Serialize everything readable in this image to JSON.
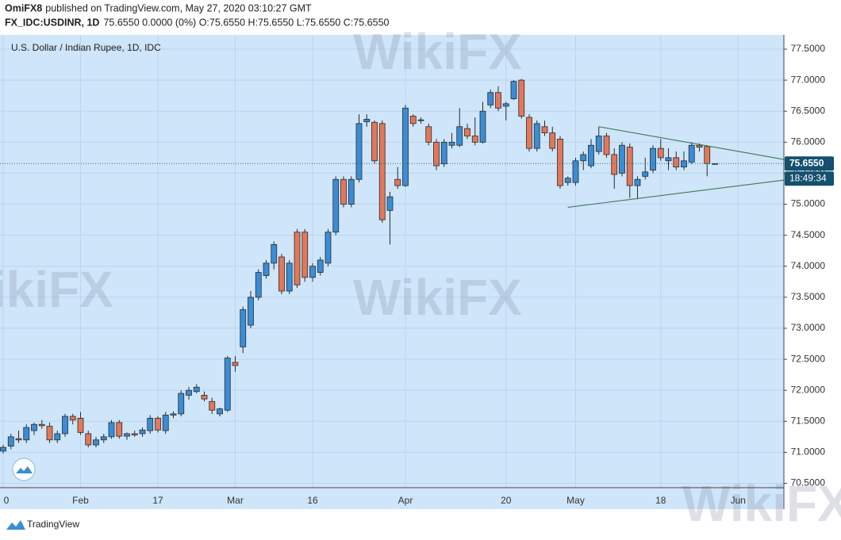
{
  "chart_data": {
    "type": "candlestick",
    "header": {
      "publisher": "OmiFX8",
      "published": "published on TradingView.com, May 27, 2020 03:10:27 GMT",
      "symbol": "FX_IDC:USDINR, 1D",
      "quote": "75.6550 0.0000 (0%) O:75.6550 H:75.6550 L:75.6550 C:75.6550"
    },
    "title": "U.S. Dollar / Indian Rupee, 1D, IDC",
    "categories": [
      "0",
      null,
      null,
      null,
      null,
      null,
      null,
      null,
      null,
      null,
      "Feb",
      null,
      null,
      null,
      null,
      null,
      null,
      null,
      null,
      null,
      "17",
      null,
      null,
      null,
      null,
      null,
      null,
      null,
      null,
      null,
      "Mar",
      null,
      null,
      null,
      null,
      null,
      null,
      null,
      null,
      null,
      "16",
      null,
      null,
      null,
      null,
      null,
      null,
      null,
      null,
      null,
      null,
      null,
      "Apr",
      null,
      null,
      null,
      null,
      null,
      null,
      null,
      null,
      null,
      null,
      null,
      null,
      "20",
      null,
      null,
      null,
      null,
      null,
      null,
      null,
      null,
      "May",
      null,
      null,
      null,
      null,
      null,
      null,
      null,
      null,
      null,
      null,
      "18",
      null,
      null,
      null,
      null,
      null,
      null,
      null,
      null,
      null,
      "Jun"
    ],
    "open": [
      71.02,
      71.1,
      71.22,
      71.2,
      71.35,
      71.45,
      71.42,
      71.2,
      71.3,
      71.58,
      71.55,
      71.3,
      71.12,
      71.2,
      71.25,
      71.48,
      71.26,
      71.3,
      71.3,
      71.35,
      71.55,
      71.35,
      71.6,
      71.62,
      71.92,
      71.98,
      71.92,
      71.82,
      71.62,
      71.68,
      72.45,
      72.7,
      73.05,
      73.5,
      73.85,
      74.05,
      74.15,
      73.6,
      74.55,
      74.55,
      73.82,
      73.9,
      74.05,
      74.55,
      75.4,
      75.0,
      75.4,
      76.33,
      76.32,
      76.3,
      74.9,
      75.4,
      75.3,
      76.42,
      76.35,
      76.25,
      76.0,
      75.65,
      75.95,
      75.95,
      76.22,
      76.1,
      76.0,
      76.6,
      76.8,
      76.58,
      76.7,
      77.0,
      76.4,
      75.9,
      76.25,
      76.15,
      76.05,
      75.35,
      75.35,
      75.7,
      75.62,
      75.85,
      76.1,
      75.8,
      75.5,
      75.92,
      75.3,
      75.45,
      75.55,
      75.9,
      75.7,
      75.75,
      75.6,
      75.68,
      75.95,
      75.93,
      75.655,
      null,
      null,
      null
    ],
    "high": [
      71.12,
      71.3,
      71.35,
      71.45,
      71.48,
      71.52,
      71.48,
      71.35,
      71.62,
      71.62,
      71.65,
      71.35,
      71.25,
      71.3,
      71.52,
      71.52,
      71.32,
      71.35,
      71.4,
      71.6,
      71.58,
      71.65,
      71.66,
      72.0,
      72.05,
      72.1,
      71.98,
      71.88,
      71.72,
      72.55,
      72.55,
      73.35,
      73.6,
      73.95,
      74.1,
      74.4,
      74.2,
      74.1,
      74.6,
      74.6,
      74.05,
      74.15,
      74.6,
      75.45,
      75.45,
      75.45,
      76.45,
      76.45,
      76.35,
      76.35,
      75.2,
      75.6,
      76.6,
      76.45,
      76.4,
      76.3,
      76.05,
      76.05,
      76.15,
      76.55,
      76.3,
      76.4,
      76.65,
      76.85,
      76.9,
      76.65,
      77.0,
      77.02,
      76.45,
      76.35,
      76.35,
      76.25,
      76.1,
      75.45,
      75.75,
      75.85,
      76.05,
      76.25,
      76.15,
      75.9,
      76.0,
      75.98,
      75.45,
      75.75,
      75.95,
      76.05,
      75.9,
      75.85,
      75.85,
      76.0,
      75.98,
      75.95,
      75.655,
      null,
      null,
      null
    ],
    "low": [
      70.98,
      71.05,
      71.15,
      71.15,
      71.28,
      71.38,
      71.15,
      71.15,
      71.25,
      71.45,
      71.28,
      71.08,
      71.08,
      71.15,
      71.22,
      71.22,
      71.2,
      71.25,
      71.25,
      71.3,
      71.32,
      71.3,
      71.55,
      71.58,
      71.85,
      71.95,
      71.82,
      71.62,
      71.58,
      71.65,
      72.3,
      72.6,
      73.0,
      73.45,
      73.8,
      73.95,
      73.55,
      73.55,
      73.65,
      73.75,
      73.75,
      73.85,
      74.0,
      74.5,
      74.95,
      74.95,
      75.35,
      76.25,
      75.65,
      74.7,
      74.35,
      75.25,
      75.28,
      76.25,
      76.3,
      75.95,
      75.55,
      75.6,
      75.9,
      75.92,
      76.05,
      75.95,
      75.98,
      76.55,
      76.5,
      76.35,
      76.68,
      76.38,
      75.85,
      75.85,
      76.1,
      75.85,
      75.25,
      75.3,
      75.3,
      75.55,
      75.58,
      75.8,
      75.75,
      75.25,
      75.45,
      75.1,
      75.08,
      75.4,
      75.5,
      75.7,
      75.55,
      75.55,
      75.55,
      75.65,
      75.85,
      75.45,
      75.655,
      null,
      null,
      null
    ],
    "close": [
      71.08,
      71.25,
      71.2,
      71.4,
      71.45,
      71.43,
      71.2,
      71.3,
      71.58,
      71.52,
      71.32,
      71.12,
      71.2,
      71.25,
      71.48,
      71.26,
      71.3,
      71.28,
      71.36,
      71.55,
      71.36,
      71.6,
      71.62,
      71.95,
      72.0,
      72.05,
      71.86,
      71.68,
      71.7,
      72.52,
      72.4,
      73.3,
      73.5,
      73.9,
      74.05,
      74.35,
      73.6,
      74.05,
      73.7,
      73.82,
      74.0,
      74.1,
      74.55,
      75.4,
      75.0,
      75.4,
      76.3,
      76.37,
      75.7,
      74.75,
      75.12,
      75.3,
      76.55,
      76.3,
      76.36,
      76.0,
      75.62,
      76.0,
      76.0,
      76.25,
      76.1,
      76.0,
      76.5,
      76.8,
      76.55,
      76.62,
      76.98,
      76.42,
      75.9,
      76.3,
      76.15,
      75.9,
      75.3,
      75.42,
      75.7,
      75.8,
      75.95,
      76.1,
      75.8,
      75.48,
      75.95,
      75.3,
      75.4,
      75.52,
      75.9,
      75.75,
      75.75,
      75.6,
      75.7,
      75.95,
      75.92,
      75.655,
      75.655,
      null,
      null,
      null
    ],
    "up_color": "#3a8dd6",
    "down_color": "#e2785a",
    "ylim": [
      70.43,
      77.73
    ],
    "yticks": [
      {
        "value": 70.5,
        "label": "70.5000"
      },
      {
        "value": 71,
        "label": "71.0000"
      },
      {
        "value": 71.5,
        "label": "71.5000"
      },
      {
        "value": 72,
        "label": "72.0000"
      },
      {
        "value": 72.5,
        "label": "72.5000"
      },
      {
        "value": 73,
        "label": "73.0000"
      },
      {
        "value": 73.5,
        "label": "73.5000"
      },
      {
        "value": 74,
        "label": "74.0000"
      },
      {
        "value": 74.5,
        "label": "74.5000"
      },
      {
        "value": 75,
        "label": "75.0000"
      },
      {
        "value": 75.5,
        "label": "75.5000"
      },
      {
        "value": 76,
        "label": "76.0000"
      },
      {
        "value": 76.5,
        "label": "76.5000"
      },
      {
        "value": 77,
        "label": "77.0000"
      },
      {
        "value": 77.5,
        "label": "77.5000"
      }
    ],
    "grid": true,
    "last_price": {
      "value": 75.655,
      "label": "75.6550"
    },
    "countdown": "18:49:34",
    "trendlines": [
      {
        "x": [
          77,
          101
        ],
        "y": [
          76.25,
          75.72
        ]
      },
      {
        "x": [
          73,
          101
        ],
        "y": [
          74.95,
          75.39
        ]
      }
    ],
    "watermark": "WikiFX",
    "branding": "TradingView"
  }
}
